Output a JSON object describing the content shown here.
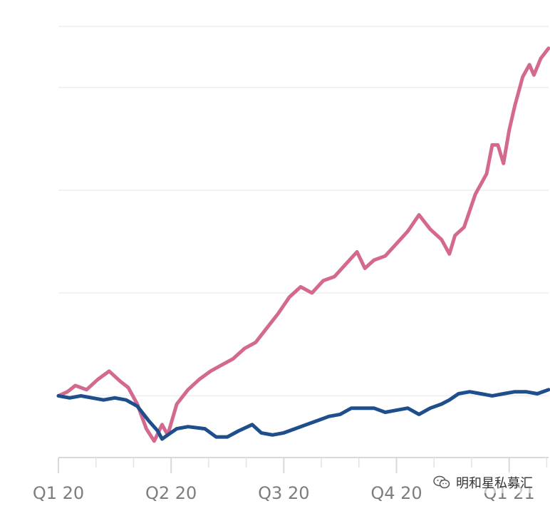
{
  "chart_data": {
    "type": "line",
    "title": "",
    "xlabel": "",
    "ylabel": "",
    "x_tick_labels": [
      "Q1 20",
      "Q2 20",
      "Q3 20",
      "Q4 20",
      "Q1 21"
    ],
    "xlim": [
      0,
      4.35
    ],
    "ylim": [
      70,
      280
    ],
    "grid": true,
    "y_tick_labels_shown": false,
    "legend": "none",
    "colors": {
      "pink": "#d4698f",
      "blue": "#1f4e8c",
      "grid": "#eeeeee",
      "axis": "#d9d9d9",
      "label": "#7d7d7d"
    },
    "series": [
      {
        "values": [
          [
            0,
            100
          ],
          [
            0.08,
            102
          ],
          [
            0.15,
            105
          ],
          [
            0.25,
            103
          ],
          [
            0.35,
            108
          ],
          [
            0.45,
            112
          ],
          [
            0.55,
            107
          ],
          [
            0.62,
            104
          ],
          [
            0.7,
            96
          ],
          [
            0.78,
            84
          ],
          [
            0.85,
            78
          ],
          [
            0.92,
            86
          ],
          [
            0.97,
            81
          ],
          [
            1.05,
            96
          ],
          [
            1.15,
            103
          ],
          [
            1.25,
            108
          ],
          [
            1.35,
            112
          ],
          [
            1.45,
            115
          ],
          [
            1.55,
            118
          ],
          [
            1.65,
            123
          ],
          [
            1.75,
            126
          ],
          [
            1.85,
            133
          ],
          [
            1.95,
            140
          ],
          [
            2.05,
            148
          ],
          [
            2.15,
            153
          ],
          [
            2.25,
            150
          ],
          [
            2.35,
            156
          ],
          [
            2.45,
            158
          ],
          [
            2.55,
            164
          ],
          [
            2.65,
            170
          ],
          [
            2.72,
            162
          ],
          [
            2.8,
            166
          ],
          [
            2.9,
            168
          ],
          [
            3.0,
            174
          ],
          [
            3.1,
            180
          ],
          [
            3.2,
            188
          ],
          [
            3.3,
            181
          ],
          [
            3.4,
            176
          ],
          [
            3.47,
            169
          ],
          [
            3.52,
            178
          ],
          [
            3.6,
            182
          ],
          [
            3.7,
            198
          ],
          [
            3.8,
            208
          ],
          [
            3.85,
            222
          ],
          [
            3.9,
            222
          ],
          [
            3.95,
            213
          ],
          [
            4.0,
            229
          ],
          [
            4.05,
            241
          ],
          [
            4.12,
            255
          ],
          [
            4.18,
            261
          ],
          [
            4.22,
            256
          ],
          [
            4.28,
            264
          ],
          [
            4.35,
            269
          ]
        ]
      },
      {
        "values": [
          [
            0,
            100
          ],
          [
            0.1,
            99
          ],
          [
            0.2,
            100
          ],
          [
            0.3,
            99
          ],
          [
            0.4,
            98
          ],
          [
            0.5,
            99
          ],
          [
            0.6,
            98
          ],
          [
            0.7,
            95
          ],
          [
            0.8,
            88
          ],
          [
            0.88,
            83
          ],
          [
            0.92,
            79
          ],
          [
            0.97,
            81
          ],
          [
            1.05,
            84
          ],
          [
            1.15,
            85
          ],
          [
            1.3,
            84
          ],
          [
            1.4,
            80
          ],
          [
            1.5,
            80
          ],
          [
            1.6,
            83
          ],
          [
            1.72,
            86
          ],
          [
            1.8,
            82
          ],
          [
            1.9,
            81
          ],
          [
            2.0,
            82
          ],
          [
            2.1,
            84
          ],
          [
            2.2,
            86
          ],
          [
            2.3,
            88
          ],
          [
            2.4,
            90
          ],
          [
            2.5,
            91
          ],
          [
            2.6,
            94
          ],
          [
            2.7,
            94
          ],
          [
            2.8,
            94
          ],
          [
            2.9,
            92
          ],
          [
            3.0,
            93
          ],
          [
            3.1,
            94
          ],
          [
            3.2,
            91
          ],
          [
            3.3,
            94
          ],
          [
            3.4,
            96
          ],
          [
            3.47,
            98
          ],
          [
            3.55,
            101
          ],
          [
            3.65,
            102
          ],
          [
            3.75,
            101
          ],
          [
            3.85,
            100
          ],
          [
            3.95,
            101
          ],
          [
            4.05,
            102
          ],
          [
            4.15,
            102
          ],
          [
            4.25,
            101
          ],
          [
            4.35,
            103
          ]
        ]
      }
    ]
  },
  "watermark": {
    "icon": "wechat-icon",
    "text": "明和星私募汇"
  }
}
